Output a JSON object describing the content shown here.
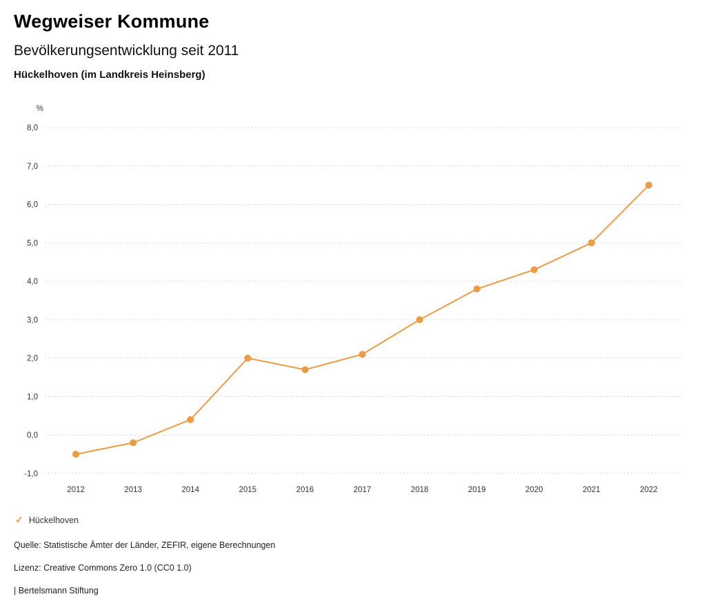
{
  "header": {
    "title": "Wegweiser Kommune",
    "subtitle": "Bevölkerungsentwicklung seit 2011",
    "location": "Hückelhoven (im Landkreis Heinsberg)"
  },
  "chart_data": {
    "type": "line",
    "title": "Bevölkerungsentwicklung seit 2011",
    "subtitle": "Hückelhoven (im Landkreis Heinsberg)",
    "unit_label": "%",
    "xlabel": "",
    "ylabel": "%",
    "categories": [
      "2012",
      "2013",
      "2014",
      "2015",
      "2016",
      "2017",
      "2018",
      "2019",
      "2020",
      "2021",
      "2022"
    ],
    "series": [
      {
        "name": "Hückelhoven",
        "values": [
          -0.5,
          -0.2,
          0.4,
          2.0,
          1.7,
          2.1,
          3.0,
          3.8,
          4.3,
          5.0,
          6.5
        ],
        "color": "#EE9B42"
      }
    ],
    "ylim": [
      -1.0,
      8.0
    ],
    "ytick_step": 1.0,
    "ytick_labels": [
      "-1,0",
      "0,0",
      "1,0",
      "2,0",
      "3,0",
      "4,0",
      "5,0",
      "6,0",
      "7,0",
      "8,0"
    ],
    "grid": "horizontal-dotted",
    "legend_position": "bottom-left",
    "marker": "circle"
  },
  "legend": {
    "check_icon": "✓",
    "label": "Hückelhoven",
    "color": "#EE9B42"
  },
  "footer": {
    "source": "Quelle: Statistische Ämter der Länder, ZEFIR, eigene Berechnungen",
    "license": "Lizenz: Creative Commons Zero 1.0 (CC0 1.0)",
    "brand": "| Bertelsmann Stiftung"
  },
  "colors": {
    "accent": "#EE9B42",
    "gridline": "#C9C9C9",
    "text": "#333333"
  }
}
